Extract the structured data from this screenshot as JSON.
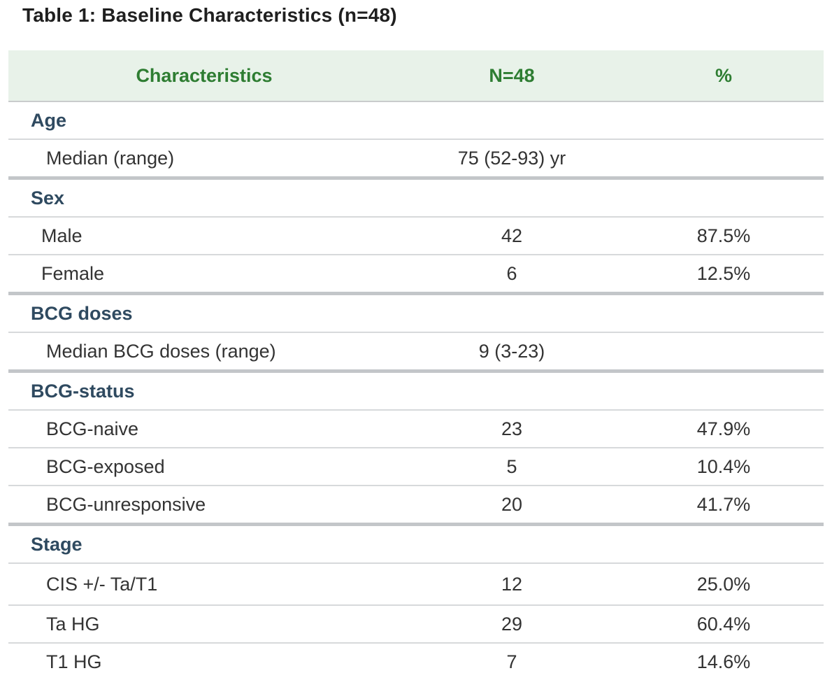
{
  "caption": "Table 1:  Baseline Characteristics (n=48)",
  "header": {
    "characteristics": "Characteristics",
    "n": "N=48",
    "percent": "%"
  },
  "groups": [
    {
      "title": "Age",
      "rows": [
        {
          "label": "Median (range)",
          "n": "75 (52-93) yr",
          "pct": ""
        }
      ]
    },
    {
      "title": "Sex",
      "rows": [
        {
          "label": "Male",
          "n": "42",
          "pct": "87.5%"
        },
        {
          "label": "Female",
          "n": "6",
          "pct": "12.5%"
        }
      ]
    },
    {
      "title": "BCG doses",
      "rows": [
        {
          "label": "Median BCG doses (range)",
          "n": "9 (3-23)",
          "pct": ""
        }
      ]
    },
    {
      "title": "BCG-status",
      "rows": [
        {
          "label": "BCG-naive",
          "n": "23",
          "pct": "47.9%"
        },
        {
          "label": "BCG-exposed",
          "n": "5",
          "pct": "10.4%"
        },
        {
          "label": "BCG-unresponsive",
          "n": "20",
          "pct": "41.7%"
        }
      ]
    },
    {
      "title": "Stage",
      "rows": [
        {
          "label": "CIS +/- Ta/T1",
          "n": "12",
          "pct": "25.0%"
        },
        {
          "label": "Ta HG",
          "n": "29",
          "pct": "60.4%"
        },
        {
          "label": "T1 HG",
          "n": "7",
          "pct": "14.6%"
        }
      ]
    }
  ],
  "colors": {
    "header_bg": "#e8f2e9",
    "header_text": "#2e7d32",
    "group_text": "#2f4a60",
    "rule": "#d7d9db"
  }
}
